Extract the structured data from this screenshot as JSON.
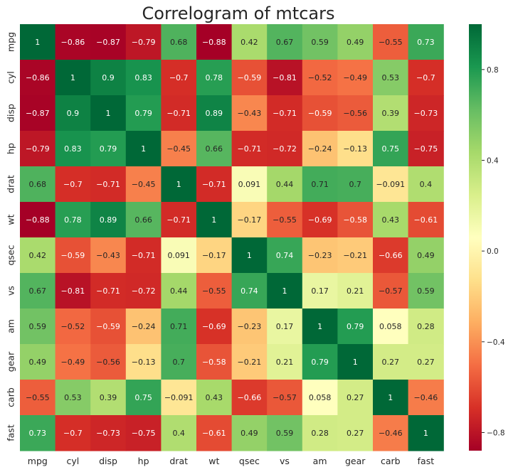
{
  "chart_data": {
    "type": "heatmap",
    "title": "Correlogram of mtcars",
    "x_labels": [
      "mpg",
      "cyl",
      "disp",
      "hp",
      "drat",
      "wt",
      "qsec",
      "vs",
      "am",
      "gear",
      "carb",
      "fast"
    ],
    "y_labels": [
      "mpg",
      "cyl",
      "disp",
      "hp",
      "drat",
      "wt",
      "qsec",
      "vs",
      "am",
      "gear",
      "carb",
      "fast"
    ],
    "values": [
      [
        1,
        -0.86,
        -0.87,
        -0.79,
        0.68,
        -0.88,
        0.42,
        0.67,
        0.59,
        0.49,
        -0.55,
        0.73
      ],
      [
        -0.86,
        1,
        0.9,
        0.83,
        -0.7,
        0.78,
        -0.59,
        -0.81,
        -0.52,
        -0.49,
        0.53,
        -0.7
      ],
      [
        -0.87,
        0.9,
        1,
        0.79,
        -0.71,
        0.89,
        -0.43,
        -0.71,
        -0.59,
        -0.56,
        0.39,
        -0.73
      ],
      [
        -0.79,
        0.83,
        0.79,
        1,
        -0.45,
        0.66,
        -0.71,
        -0.72,
        -0.24,
        -0.13,
        0.75,
        -0.75
      ],
      [
        0.68,
        -0.7,
        -0.71,
        -0.45,
        1,
        -0.71,
        0.091,
        0.44,
        0.71,
        0.7,
        -0.091,
        0.4
      ],
      [
        -0.88,
        0.78,
        0.89,
        0.66,
        -0.71,
        1,
        -0.17,
        -0.55,
        -0.69,
        -0.58,
        0.43,
        -0.61
      ],
      [
        0.42,
        -0.59,
        -0.43,
        -0.71,
        0.091,
        -0.17,
        1,
        0.74,
        -0.23,
        -0.21,
        -0.66,
        0.49
      ],
      [
        0.67,
        -0.81,
        -0.71,
        -0.72,
        0.44,
        -0.55,
        0.74,
        1,
        0.17,
        0.21,
        -0.57,
        0.59
      ],
      [
        0.59,
        -0.52,
        -0.59,
        -0.24,
        0.71,
        -0.69,
        -0.23,
        0.17,
        1,
        0.79,
        0.058,
        0.28
      ],
      [
        0.49,
        -0.49,
        -0.56,
        -0.13,
        0.7,
        -0.58,
        -0.21,
        0.21,
        0.79,
        1,
        0.27,
        0.27
      ],
      [
        -0.55,
        0.53,
        0.39,
        0.75,
        -0.091,
        0.43,
        -0.66,
        -0.57,
        0.058,
        0.27,
        1,
        -0.46
      ],
      [
        0.73,
        -0.7,
        -0.73,
        -0.75,
        0.4,
        -0.61,
        0.49,
        0.59,
        0.28,
        0.27,
        -0.46,
        1
      ]
    ],
    "colormap": "RdYlGn",
    "colormap_stops": [
      "#a50026",
      "#d73027",
      "#f46d43",
      "#fdae61",
      "#fee08b",
      "#ffffbf",
      "#d9ef8b",
      "#a6d96a",
      "#66bd63",
      "#1a9850",
      "#006837"
    ],
    "vmin": -0.88,
    "vmax": 1,
    "annotated": true,
    "colorbar_ticks": [
      -0.8,
      -0.4,
      0.0,
      0.4,
      0.8
    ],
    "colorbar_tick_labels": [
      "−0.8",
      "−0.4",
      "0.0",
      "0.4",
      "0.8"
    ],
    "grid": false
  }
}
